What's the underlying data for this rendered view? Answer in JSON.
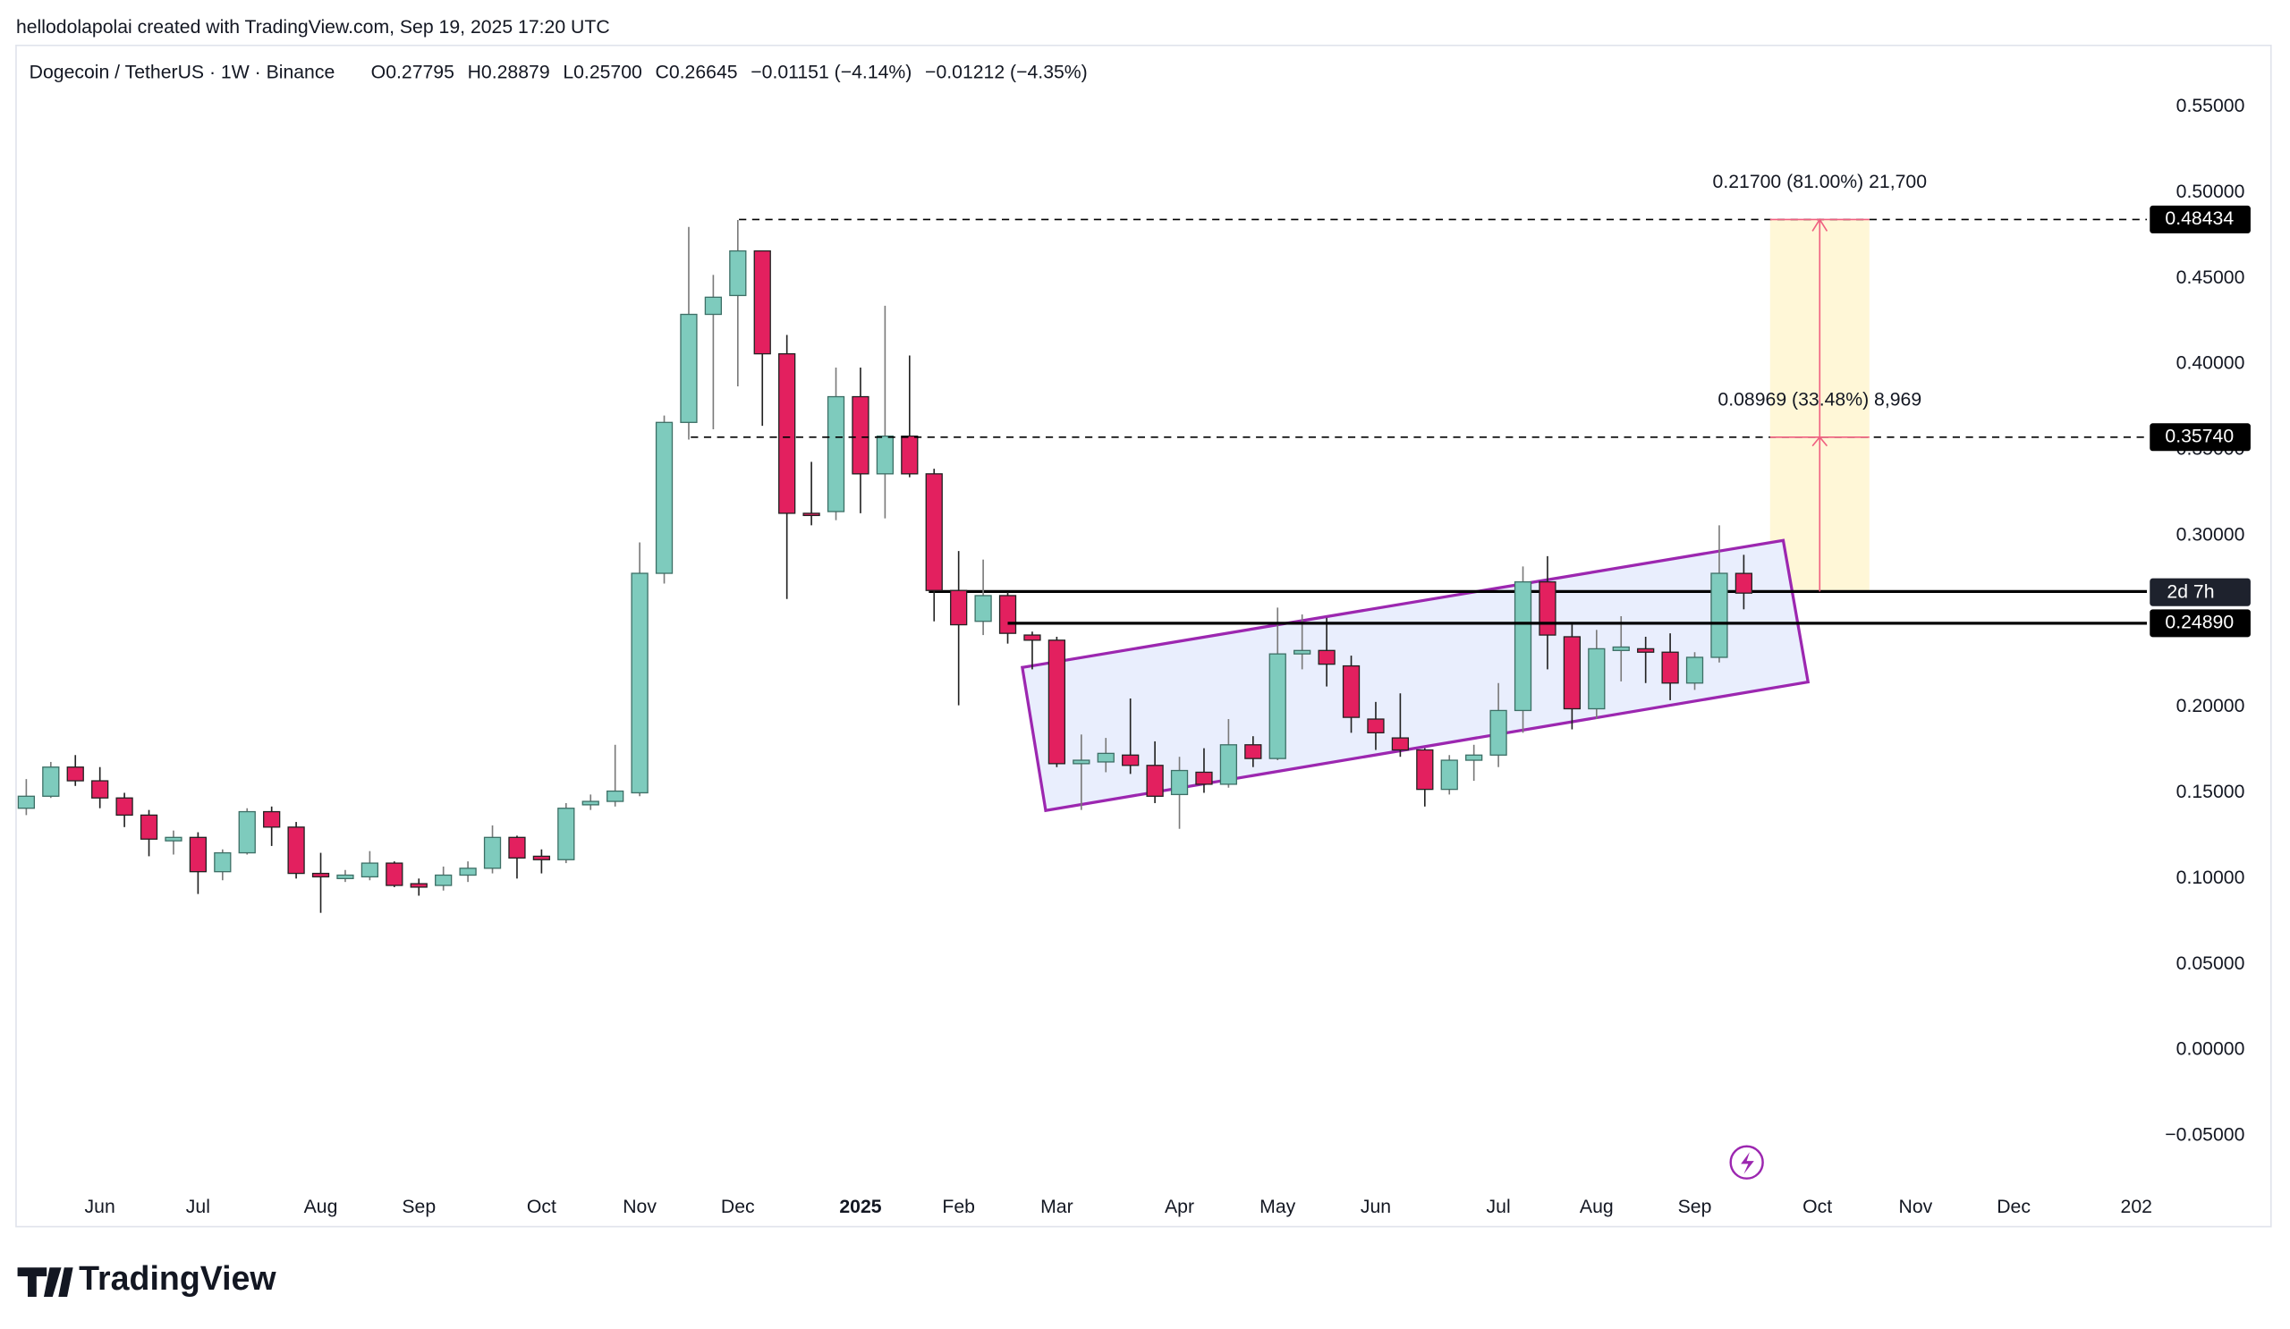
{
  "header": {
    "credit": "hellodolapolai created with TradingView.com, Sep 19, 2025 17:20 UTC"
  },
  "footer": {
    "brand": "TradingView"
  },
  "chart_data": {
    "type": "candlestick",
    "title": "Dogecoin / TetherUS · 1W · Binance",
    "ohlc_header": [
      "O0.27795",
      "H0.28879",
      "L0.25700",
      "C0.26645",
      "−0.01151 (−4.14%)",
      "−0.01212 (−4.35%)"
    ],
    "categories": [
      null,
      null,
      null,
      "Jun",
      null,
      null,
      null,
      "Jul",
      null,
      null,
      null,
      null,
      "Aug",
      null,
      null,
      null,
      "Sep",
      null,
      null,
      null,
      null,
      "Oct",
      null,
      null,
      null,
      "Nov",
      null,
      null,
      null,
      "Dec",
      null,
      null,
      null,
      null,
      "2025",
      null,
      null,
      null,
      "Feb",
      null,
      null,
      null,
      "Mar",
      null,
      null,
      null,
      null,
      "Apr",
      null,
      null,
      null,
      "May",
      null,
      null,
      null,
      "Jun",
      null,
      null,
      null,
      null,
      "Jul",
      null,
      null,
      null,
      "Aug",
      null,
      null,
      null,
      "Sep",
      null,
      null,
      null,
      null,
      "Oct",
      null,
      null,
      null,
      "Nov",
      null,
      null,
      null,
      "Dec",
      null,
      null,
      null,
      null,
      "202"
    ],
    "open": [
      0.141,
      0.148,
      0.165,
      0.157,
      0.147,
      0.137,
      0.122,
      0.124,
      0.104,
      0.115,
      0.139,
      0.13,
      0.103,
      0.1,
      0.101,
      0.109,
      0.097,
      0.096,
      0.102,
      0.106,
      0.124,
      0.113,
      0.111,
      0.143,
      0.145,
      0.15,
      0.278,
      0.366,
      0.429,
      0.44,
      0.466,
      0.406,
      0.313,
      0.314,
      0.381,
      0.336,
      0.358,
      0.336,
      0.268,
      0.25,
      0.265,
      0.242,
      0.239,
      0.167,
      0.168,
      0.172,
      0.166,
      0.149,
      0.162,
      0.155,
      0.178,
      0.17,
      0.231,
      0.233,
      0.224,
      0.193,
      0.182,
      0.175,
      0.152,
      0.169,
      0.172,
      0.198,
      0.273,
      0.241,
      0.199,
      0.233,
      0.234,
      0.232,
      0.214,
      0.229,
      0.27795,
      null,
      null,
      null,
      null,
      null,
      null,
      null,
      null,
      null,
      null,
      null,
      null,
      null,
      null,
      null,
      null
    ],
    "high": [
      0.158,
      0.168,
      0.172,
      0.165,
      0.15,
      0.14,
      0.128,
      0.127,
      0.117,
      0.141,
      0.142,
      0.133,
      0.115,
      0.105,
      0.116,
      0.11,
      0.1,
      0.107,
      0.11,
      0.131,
      0.125,
      0.117,
      0.144,
      0.149,
      0.178,
      0.296,
      0.37,
      0.48,
      0.452,
      0.484,
      0.466,
      0.417,
      0.343,
      0.398,
      0.398,
      0.434,
      0.405,
      0.339,
      0.291,
      0.286,
      0.267,
      0.244,
      0.241,
      0.184,
      0.182,
      0.205,
      0.18,
      0.171,
      0.176,
      0.193,
      0.183,
      0.258,
      0.254,
      0.252,
      0.23,
      0.203,
      0.208,
      0.176,
      0.172,
      0.178,
      0.214,
      0.282,
      0.288,
      0.248,
      0.245,
      0.253,
      0.241,
      0.243,
      0.232,
      0.306,
      0.28879,
      null,
      null,
      null,
      null,
      null,
      null,
      null,
      null,
      null,
      null,
      null,
      null,
      null,
      null,
      null,
      null
    ],
    "low": [
      0.137,
      0.147,
      0.154,
      0.141,
      0.13,
      0.113,
      0.114,
      0.091,
      0.099,
      0.114,
      0.119,
      0.1,
      0.08,
      0.098,
      0.099,
      0.095,
      0.09,
      0.093,
      0.098,
      0.103,
      0.1,
      0.103,
      0.109,
      0.14,
      0.142,
      0.148,
      0.272,
      0.356,
      0.362,
      0.387,
      0.364,
      0.263,
      0.306,
      0.309,
      0.313,
      0.31,
      0.334,
      0.25,
      0.201,
      0.242,
      0.237,
      0.222,
      0.165,
      0.14,
      0.162,
      0.161,
      0.144,
      0.129,
      0.15,
      0.153,
      0.165,
      0.169,
      0.222,
      0.212,
      0.185,
      0.175,
      0.171,
      0.142,
      0.149,
      0.157,
      0.165,
      0.185,
      0.222,
      0.187,
      0.193,
      0.215,
      0.214,
      0.204,
      0.21,
      0.226,
      0.257,
      null,
      null,
      null,
      null,
      null,
      null,
      null,
      null,
      null,
      null,
      null,
      null,
      null,
      null,
      null,
      null
    ],
    "close": [
      0.148,
      0.165,
      0.157,
      0.147,
      0.137,
      0.123,
      0.124,
      0.104,
      0.115,
      0.139,
      0.13,
      0.103,
      0.101,
      0.102,
      0.109,
      0.096,
      0.095,
      0.102,
      0.106,
      0.124,
      0.112,
      0.111,
      0.141,
      0.145,
      0.151,
      0.278,
      0.366,
      0.429,
      0.439,
      0.466,
      0.406,
      0.313,
      0.312,
      0.381,
      0.336,
      0.358,
      0.336,
      0.268,
      0.248,
      0.265,
      0.243,
      0.239,
      0.167,
      0.169,
      0.173,
      0.166,
      0.148,
      0.163,
      0.155,
      0.178,
      0.17,
      0.231,
      0.233,
      0.225,
      0.194,
      0.185,
      0.175,
      0.152,
      0.169,
      0.172,
      0.198,
      0.273,
      0.242,
      0.199,
      0.234,
      0.235,
      0.232,
      0.214,
      0.229,
      0.278,
      0.26645,
      null,
      null,
      null,
      null,
      null,
      null,
      null,
      null,
      null,
      null,
      null,
      null,
      null,
      null,
      null,
      null
    ],
    "up_color": "#7ecbbd",
    "down_color": "#e3205f",
    "ylim": [
      -0.103,
      0.585
    ],
    "yticks": [
      {
        "value": -0.05,
        "label": "−0.05000"
      },
      {
        "value": 0,
        "label": "0.00000"
      },
      {
        "value": 0.05,
        "label": "0.05000"
      },
      {
        "value": 0.1,
        "label": "0.10000"
      },
      {
        "value": 0.15,
        "label": "0.15000"
      },
      {
        "value": 0.2,
        "label": "0.20000"
      },
      {
        "value": 0.25,
        "label": "0.25000"
      },
      {
        "value": 0.3,
        "label": "0.30000"
      },
      {
        "value": 0.35,
        "label": "0.35000"
      },
      {
        "value": 0.4,
        "label": "0.40000"
      },
      {
        "value": 0.45,
        "label": "0.45000"
      },
      {
        "value": 0.5,
        "label": "0.50000"
      },
      {
        "value": 0.55,
        "label": "0.55000"
      }
    ],
    "levels": [
      {
        "value": 0.48434,
        "label": "0.48434",
        "style": "dashed"
      },
      {
        "value": 0.3574,
        "label": "0.35740",
        "style": "dashed"
      },
      {
        "value": 0.2489,
        "label": "0.24890",
        "style": "solid"
      }
    ],
    "countdown": "2d 7h",
    "measures": [
      "0.21700 (81.00%) 21,700",
      "0.08969 (33.48%) 8,969"
    ]
  }
}
